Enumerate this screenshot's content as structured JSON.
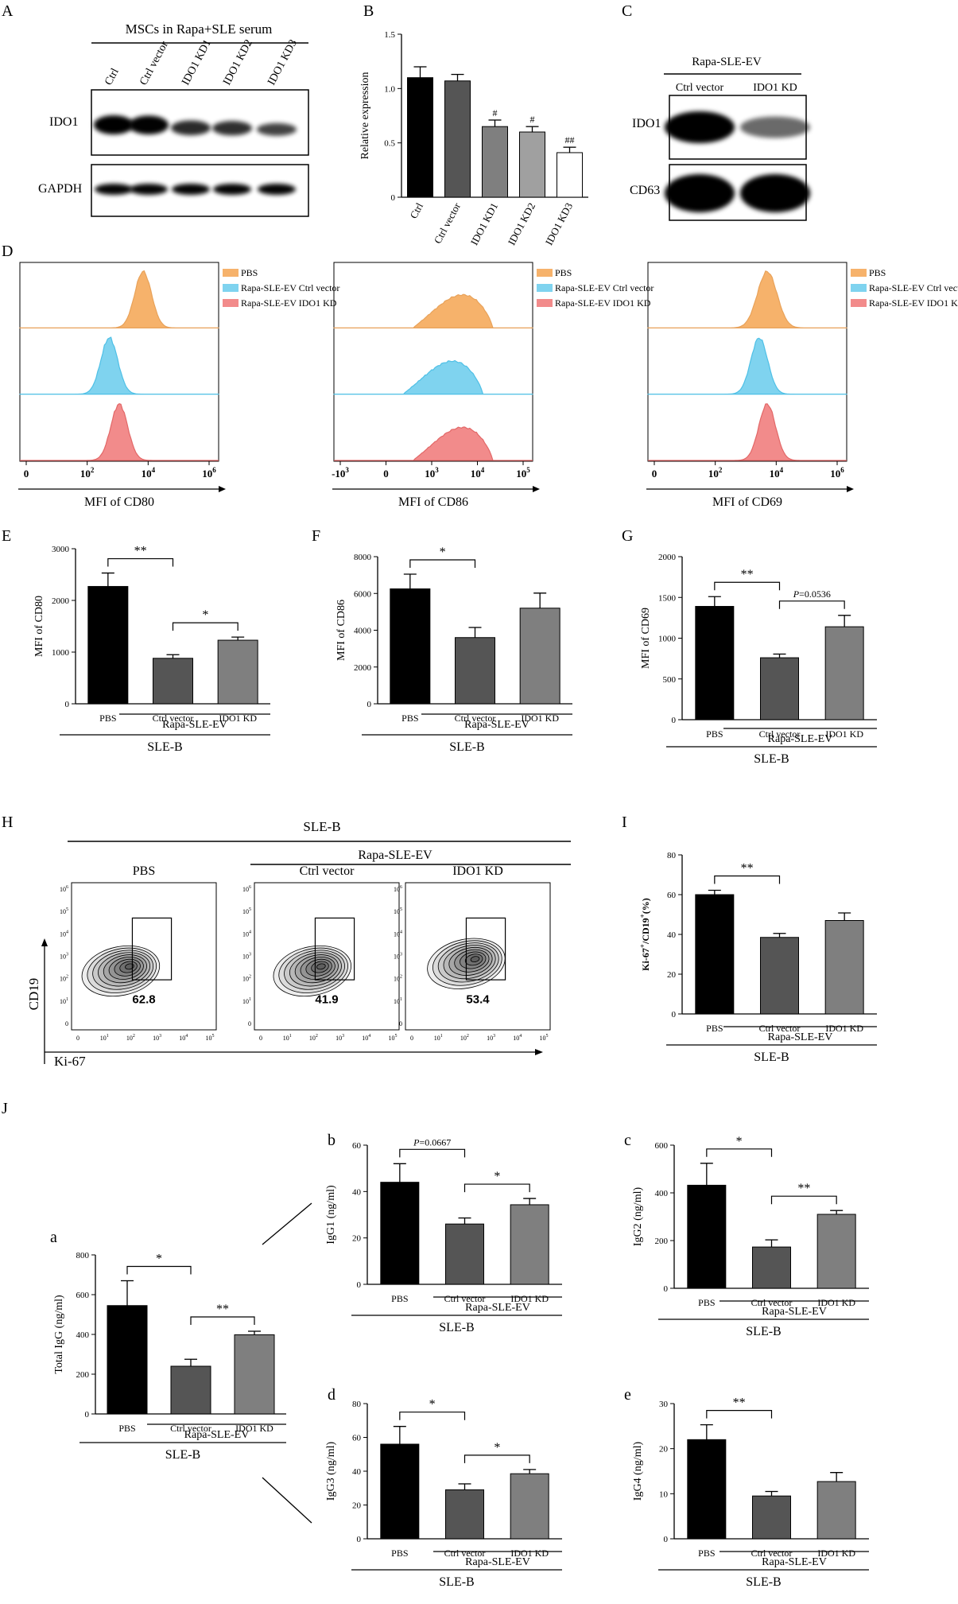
{
  "panel_letters": {
    "A": "A",
    "B": "B",
    "C": "C",
    "D": "D",
    "E": "E",
    "F": "F",
    "G": "G",
    "H": "H",
    "I": "I",
    "J": "J",
    "a": "a",
    "b": "b",
    "c": "c",
    "d": "d",
    "e": "e"
  },
  "colors": {
    "black": "#000000",
    "dark": "#555555",
    "mid": "#7f7f7f",
    "light": "#a0a0a0",
    "white": "#ffffff",
    "pbs": "#f6b26b",
    "ctrl": "#7fd3ef",
    "ido1": "#f28b8b"
  },
  "blot_A": {
    "title": "MSCs in Rapa+SLE serum",
    "lanes": [
      "Ctrl",
      "Ctrl vector",
      "IDO1 KD1",
      "IDO1 KD2",
      "IDO1 KD3"
    ],
    "rows": [
      {
        "label": "IDO1",
        "intensity": [
          1.0,
          0.98,
          0.62,
          0.58,
          0.42
        ]
      },
      {
        "label": "GAPDH",
        "intensity": [
          0.95,
          0.95,
          0.95,
          0.95,
          0.95
        ]
      }
    ]
  },
  "blot_C": {
    "title": "Rapa-SLE-EV",
    "lanes": [
      "Ctrl vector",
      "IDO1 KD"
    ],
    "rows": [
      {
        "label": "IDO1",
        "intensity": [
          1.0,
          0.35
        ]
      },
      {
        "label": "CD63",
        "intensity": [
          1.0,
          1.0
        ]
      }
    ]
  },
  "histograms": {
    "legend": [
      "PBS",
      "Rapa-SLE-EV Ctrl vector",
      "Rapa-SLE-EV IDO1 KD"
    ],
    "panels": [
      {
        "xlabel": "MFI of CD80",
        "ticks": [
          "0",
          "2",
          "4",
          "6"
        ],
        "tick_prefix": "10"
      },
      {
        "xlabel": "MFI of CD86",
        "ticks": [
          "-10^3",
          "0",
          "10^3",
          "10^4",
          "10^5"
        ]
      },
      {
        "xlabel": "MFI of CD69",
        "ticks": [
          "0",
          "2",
          "4",
          "6"
        ],
        "tick_prefix": "10"
      }
    ]
  },
  "flow_H": {
    "group": "SLE-B",
    "subgroup": "Rapa-SLE-EV",
    "ylabel": "CD19",
    "xlabel": "Ki-67",
    "plots": [
      {
        "title": "PBS",
        "gate_value": "62.8"
      },
      {
        "title": "Ctrl vector",
        "gate_value": "41.9"
      },
      {
        "title": "IDO1 KD",
        "gate_value": "53.4"
      }
    ],
    "axis_ticks": [
      "0",
      "1",
      "2",
      "3",
      "4",
      "5"
    ],
    "y_ticks": [
      "0",
      "1",
      "2",
      "3",
      "4",
      "5",
      "6"
    ]
  },
  "shared_labels": {
    "group": "SLE-B",
    "subgroup": "Rapa-SLE-EV"
  },
  "chart_data": [
    {
      "id": "B",
      "type": "bar",
      "categories": [
        "Ctrl",
        "Ctrl vector",
        "IDO1 KD1",
        "IDO1 KD2",
        "IDO1 KD3"
      ],
      "values": [
        1.1,
        1.07,
        0.65,
        0.6,
        0.41
      ],
      "errors": [
        0.1,
        0.06,
        0.06,
        0.05,
        0.05
      ],
      "annotations": [
        "",
        "",
        "#",
        "#",
        "##"
      ],
      "ylabel": "Relative expression",
      "ylim": [
        0,
        1.5
      ],
      "yticks": [
        0,
        0.5,
        1.0,
        1.5
      ]
    },
    {
      "id": "E",
      "type": "bar",
      "categories": [
        "PBS",
        "Ctrl vector",
        "IDO1 KD"
      ],
      "values": [
        2270,
        880,
        1230
      ],
      "errors": [
        260,
        70,
        60
      ],
      "ylabel": "MFI of CD80",
      "ylim": [
        0,
        3000
      ],
      "yticks": [
        0,
        1000,
        2000,
        3000
      ],
      "brackets": [
        {
          "from": 0,
          "to": 1,
          "text": "**"
        },
        {
          "from": 1,
          "to": 2,
          "text": "*"
        }
      ]
    },
    {
      "id": "F",
      "type": "bar",
      "categories": [
        "PBS",
        "Ctrl vector",
        "IDO1 KD"
      ],
      "values": [
        6250,
        3600,
        5200
      ],
      "errors": [
        800,
        550,
        820
      ],
      "ylabel": "MFI of CD86",
      "ylim": [
        0,
        8000
      ],
      "yticks": [
        0,
        2000,
        4000,
        6000,
        8000
      ],
      "brackets": [
        {
          "from": 0,
          "to": 1,
          "text": "*"
        }
      ]
    },
    {
      "id": "G",
      "type": "bar",
      "categories": [
        "PBS",
        "Ctrl vector",
        "IDO1 KD"
      ],
      "values": [
        1390,
        760,
        1140
      ],
      "errors": [
        120,
        45,
        140
      ],
      "ylabel": "MFI of CD69",
      "ylim": [
        0,
        2000
      ],
      "yticks": [
        0,
        500,
        1000,
        1500,
        2000
      ],
      "brackets": [
        {
          "from": 0,
          "to": 1,
          "text": "**"
        },
        {
          "from": 1,
          "to": 2,
          "text": "P=0.0536"
        }
      ]
    },
    {
      "id": "I",
      "type": "bar",
      "categories": [
        "PBS",
        "Ctrl vector",
        "IDO1 KD"
      ],
      "values": [
        60,
        38.5,
        47
      ],
      "errors": [
        2.2,
        2,
        3.8
      ],
      "ylabel": "Ki-67+/CD19+(%)",
      "ylim": [
        0,
        80
      ],
      "yticks": [
        0,
        20,
        40,
        60,
        80
      ],
      "brackets": [
        {
          "from": 0,
          "to": 1,
          "text": "**"
        }
      ]
    },
    {
      "id": "a",
      "type": "bar",
      "categories": [
        "PBS",
        "Ctrl vector",
        "IDO1 KD"
      ],
      "values": [
        545,
        240,
        398
      ],
      "errors": [
        125,
        35,
        18
      ],
      "ylabel": "Total IgG (ng/ml)",
      "ylim": [
        0,
        800
      ],
      "yticks": [
        0,
        200,
        400,
        600,
        800
      ],
      "brackets": [
        {
          "from": 0,
          "to": 1,
          "text": "*"
        },
        {
          "from": 1,
          "to": 2,
          "text": "**"
        }
      ]
    },
    {
      "id": "b",
      "type": "bar",
      "categories": [
        "PBS",
        "Ctrl vector",
        "IDO1 KD"
      ],
      "values": [
        44,
        26,
        34.3
      ],
      "errors": [
        8,
        2.6,
        2.7
      ],
      "ylabel": "IgG1 (ng/ml)",
      "ylim": [
        0,
        60
      ],
      "yticks": [
        0,
        20,
        40,
        60
      ],
      "brackets": [
        {
          "from": 0,
          "to": 1,
          "text": "P=0.0667"
        },
        {
          "from": 1,
          "to": 2,
          "text": "*"
        }
      ]
    },
    {
      "id": "c",
      "type": "bar",
      "categories": [
        "PBS",
        "Ctrl vector",
        "IDO1 KD"
      ],
      "values": [
        432,
        173,
        310
      ],
      "errors": [
        92,
        30,
        16
      ],
      "ylabel": "IgG2 (ng/ml)",
      "ylim": [
        0,
        600
      ],
      "yticks": [
        0,
        200,
        400,
        600
      ],
      "brackets": [
        {
          "from": 0,
          "to": 1,
          "text": "*"
        },
        {
          "from": 1,
          "to": 2,
          "text": "**"
        }
      ]
    },
    {
      "id": "d",
      "type": "bar",
      "categories": [
        "PBS",
        "Ctrl vector",
        "IDO1 KD"
      ],
      "values": [
        56,
        29,
        38.5
      ],
      "errors": [
        10.5,
        3.5,
        2.5
      ],
      "ylabel": "IgG3 (ng/ml)",
      "ylim": [
        0,
        80
      ],
      "yticks": [
        0,
        20,
        40,
        60,
        80
      ],
      "brackets": [
        {
          "from": 0,
          "to": 1,
          "text": "*"
        },
        {
          "from": 1,
          "to": 2,
          "text": "*"
        }
      ]
    },
    {
      "id": "e",
      "type": "bar",
      "categories": [
        "PBS",
        "Ctrl vector",
        "IDO1 KD"
      ],
      "values": [
        22,
        9.5,
        12.7
      ],
      "errors": [
        3.3,
        1,
        2
      ],
      "ylabel": "IgG4 (ng/ml)",
      "ylim": [
        0,
        30
      ],
      "yticks": [
        0,
        10,
        20,
        30
      ],
      "brackets": [
        {
          "from": 0,
          "to": 1,
          "text": "**"
        }
      ]
    }
  ]
}
